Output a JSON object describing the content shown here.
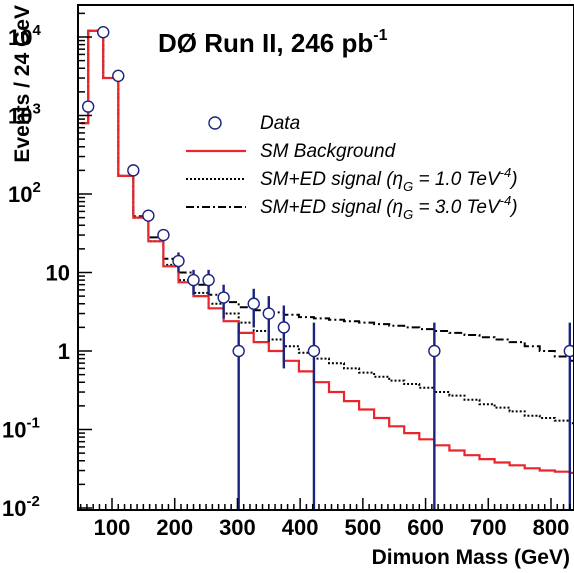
{
  "chart_data": {
    "type": "line",
    "title": "DØ Run II, 246 pb",
    "title_sup": "-1",
    "xlabel": "Dimuon Mass (GeV)",
    "ylabel": "Events / 24 GeV",
    "xlim": [
      50,
      860
    ],
    "ylim": [
      0.01,
      25000
    ],
    "y_scale": "log",
    "x_ticks": [
      "100",
      "200",
      "300",
      "400",
      "500",
      "600",
      "700",
      "800"
    ],
    "y_ticks": [
      {
        "base": "10",
        "exp": "-2"
      },
      {
        "base": "10",
        "exp": "-1"
      },
      {
        "base": "1",
        "exp": ""
      },
      {
        "base": "10",
        "exp": ""
      },
      {
        "base": "10",
        "exp": "2"
      },
      {
        "base": "10",
        "exp": "3"
      },
      {
        "base": "10",
        "exp": "4"
      }
    ],
    "bin_width": 24,
    "bin_edges": [
      50,
      62,
      86,
      110,
      134,
      158,
      182,
      206,
      230,
      254,
      278,
      302,
      326,
      350,
      374,
      398,
      422,
      446,
      470,
      494,
      518,
      542,
      566,
      590,
      614,
      638,
      662,
      686,
      710,
      734,
      758,
      782,
      806,
      830,
      860
    ],
    "series": [
      {
        "name": "Data",
        "style": "points",
        "color": "#1a237e",
        "x": [
          62,
          86,
          110,
          134,
          158,
          182,
          206,
          230,
          254,
          278,
          302,
          326,
          350,
          374,
          422,
          614,
          830
        ],
        "y": [
          1300,
          11500,
          3200,
          200,
          53,
          30,
          14,
          8,
          8,
          4.8,
          1,
          4,
          3,
          2,
          1,
          1,
          1
        ],
        "err_low": [
          0,
          0,
          0,
          0,
          0,
          0,
          4,
          2.8,
          2.8,
          2.2,
          1,
          2,
          1.7,
          1.4,
          1,
          1,
          1
        ],
        "err_high": [
          0,
          0,
          0,
          0,
          0,
          0,
          4,
          2.8,
          2.8,
          2.2,
          1.3,
          2.2,
          2.0,
          1.8,
          1.3,
          1.3,
          1.3
        ]
      },
      {
        "name": "SM Background",
        "style": "solid",
        "color": "#e8262b",
        "values": [
          800,
          12000,
          3000,
          170,
          50,
          25,
          12,
          7.5,
          5,
          3.5,
          2.4,
          1.7,
          1.3,
          1.0,
          0.75,
          0.55,
          0.4,
          0.3,
          0.23,
          0.18,
          0.14,
          0.11,
          0.09,
          0.075,
          0.063,
          0.054,
          0.047,
          0.042,
          0.038,
          0.035,
          0.032,
          0.03,
          0.029,
          0.028
        ]
      },
      {
        "name": "SM+ED signal",
        "style": "dotted",
        "color": "#000000",
        "values": [
          800,
          12000,
          3000,
          170,
          50,
          25,
          12.5,
          8,
          5.5,
          4,
          3,
          2.3,
          1.8,
          1.4,
          1.15,
          0.95,
          0.8,
          0.7,
          0.6,
          0.53,
          0.47,
          0.42,
          0.38,
          0.34,
          0.3,
          0.27,
          0.24,
          0.21,
          0.19,
          0.17,
          0.15,
          0.14,
          0.13,
          0.12
        ]
      },
      {
        "name": "SM+ED signal",
        "style": "dashdot",
        "color": "#000000",
        "values": [
          800,
          12000,
          3000,
          170,
          52,
          28,
          15,
          10,
          7,
          5.2,
          4.2,
          3.6,
          3.3,
          3.1,
          2.9,
          2.7,
          2.6,
          2.5,
          2.4,
          2.3,
          2.2,
          2.1,
          2.0,
          1.9,
          1.8,
          1.7,
          1.6,
          1.5,
          1.4,
          1.3,
          1.15,
          1.0,
          0.85,
          0.75
        ]
      }
    ],
    "legend": [
      {
        "label": "Data"
      },
      {
        "label": "SM Background"
      },
      {
        "label": "SM+ED signal (η",
        "sub": "G",
        "mid": " = 1.0 TeV",
        "sup": "-4",
        "end": ")"
      },
      {
        "label": "SM+ED signal (η",
        "sub": "G",
        "mid": " = 3.0 TeV",
        "sup": "-4",
        "end": ")"
      }
    ],
    "legend_position": "top-right",
    "grid": false
  }
}
